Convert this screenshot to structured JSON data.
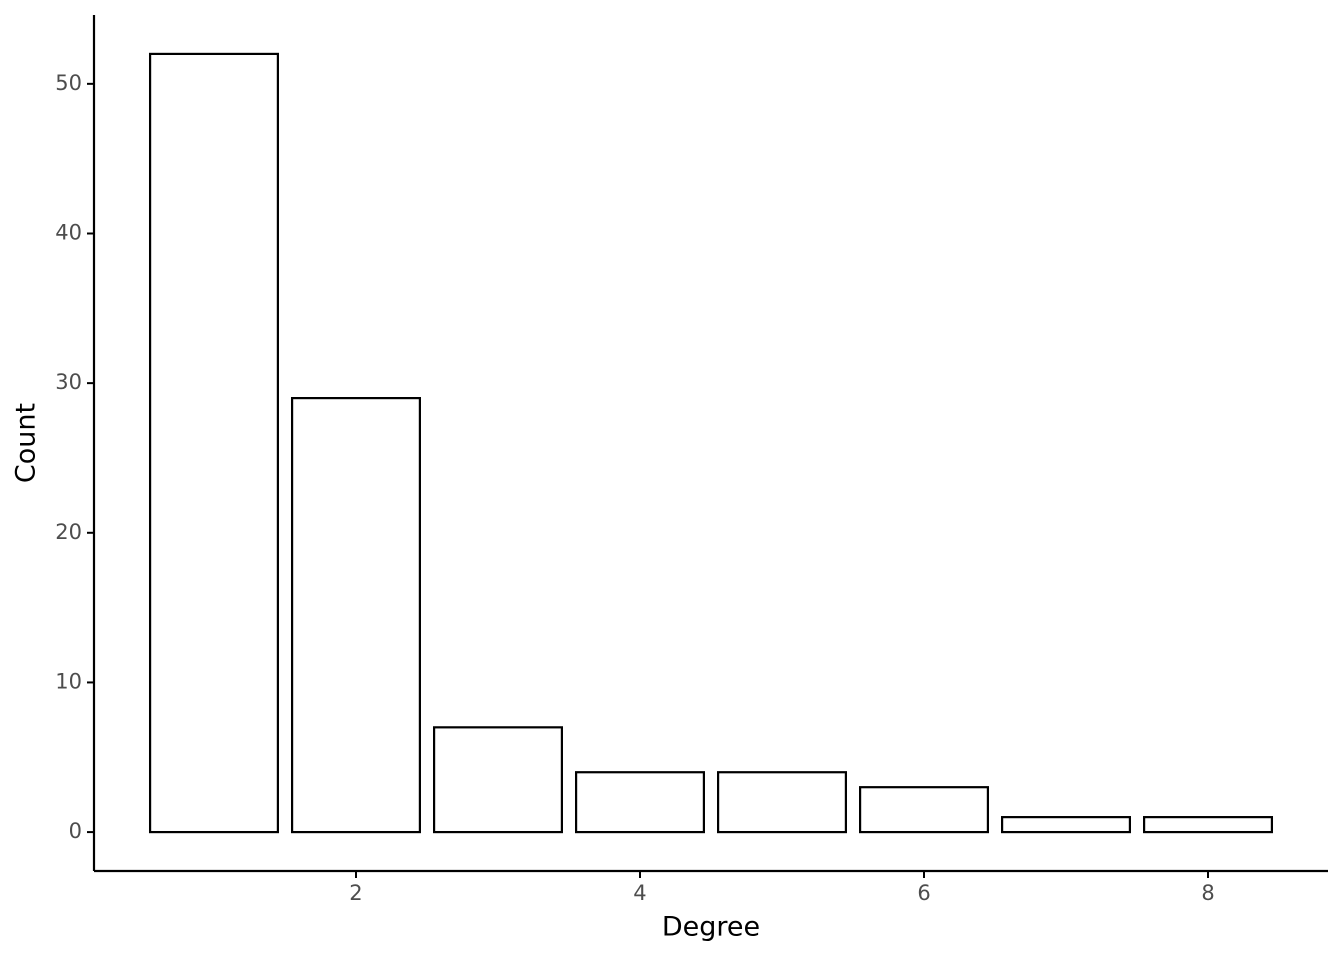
{
  "chart_data": {
    "type": "bar",
    "x_label": "Degree",
    "y_label": "Count",
    "x": [
      1,
      2,
      3,
      4,
      5,
      6,
      7,
      8
    ],
    "values": [
      52,
      29,
      7,
      4,
      4,
      3,
      1,
      1
    ],
    "color": "#ffffff",
    "edge_color": "#000000",
    "xlim": [
      0.155,
      8.845
    ],
    "xticks": [
      2,
      4,
      6,
      8
    ],
    "ylim": [
      -2.6,
      54.6
    ],
    "yticks": [
      0,
      10,
      20,
      30,
      40,
      50
    ],
    "grid": false
  }
}
